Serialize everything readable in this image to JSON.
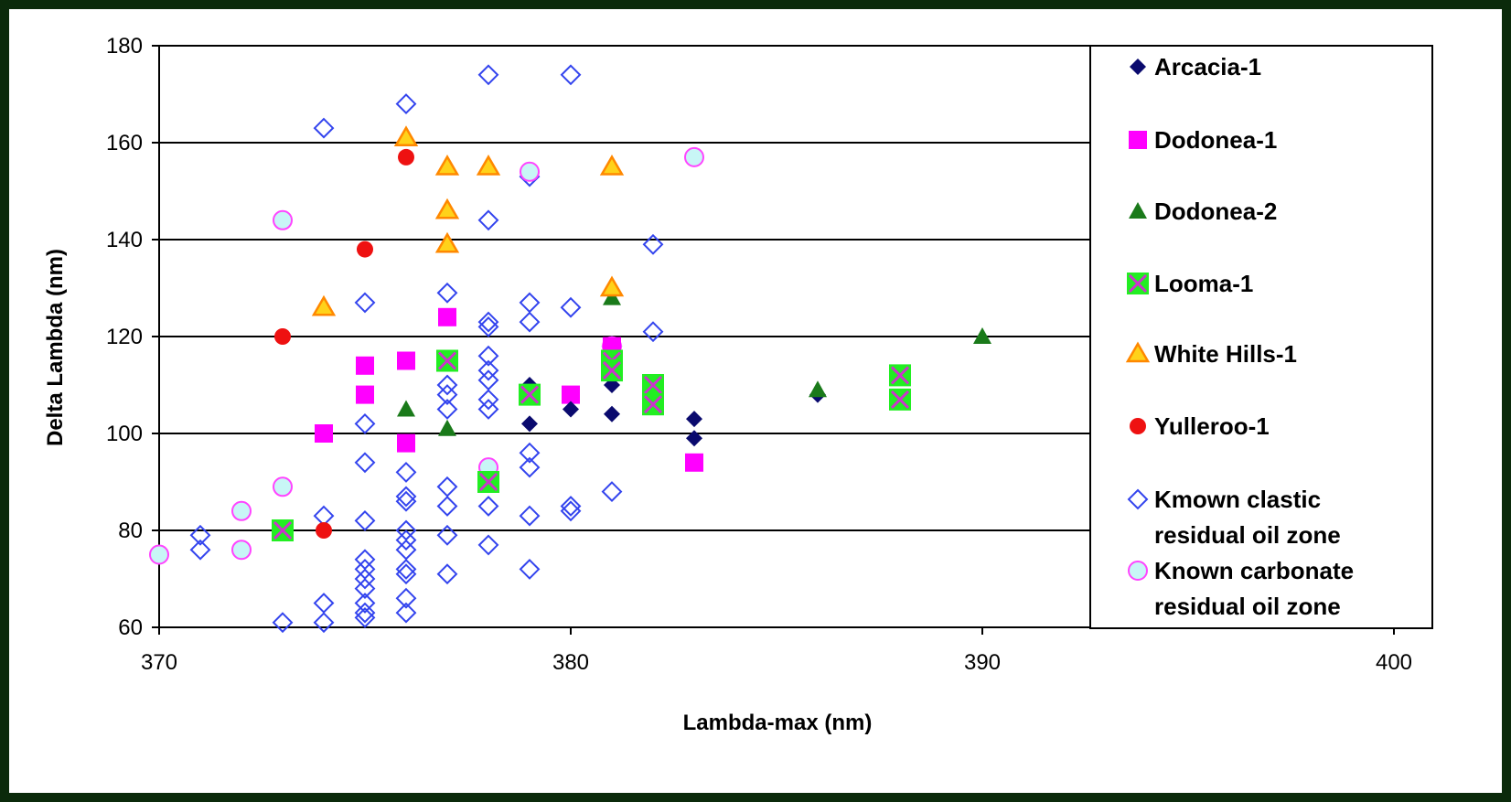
{
  "chart_data": {
    "type": "scatter",
    "xlabel": "Lambda-max (nm)",
    "ylabel": "Delta Lambda (nm)",
    "xlim": [
      370,
      400
    ],
    "ylim": [
      60,
      180
    ],
    "xticks": [
      370,
      380,
      390,
      400
    ],
    "yticks": [
      60,
      80,
      100,
      120,
      140,
      160,
      180
    ],
    "grid": "horizontal",
    "legend_position": "right",
    "series": [
      {
        "name": "Arcacia-1",
        "marker": "diamond-filled",
        "color": "#0a0a6e",
        "points": [
          [
            379,
            110
          ],
          [
            379,
            102
          ],
          [
            380,
            105
          ],
          [
            381,
            110
          ],
          [
            381,
            104
          ],
          [
            383,
            103
          ],
          [
            383,
            99
          ],
          [
            386,
            108
          ]
        ]
      },
      {
        "name": "Dodonea-1",
        "marker": "square-filled",
        "color": "#ff00ff",
        "points": [
          [
            374,
            100
          ],
          [
            375,
            114
          ],
          [
            375,
            108
          ],
          [
            376,
            115
          ],
          [
            376,
            98
          ],
          [
            377,
            124
          ],
          [
            378,
            90
          ],
          [
            379,
            108
          ],
          [
            380,
            108
          ],
          [
            381,
            118
          ],
          [
            383,
            94
          ]
        ]
      },
      {
        "name": "Dodonea-2",
        "marker": "triangle-filled",
        "color": "#1a7a1a",
        "points": [
          [
            376,
            105
          ],
          [
            377,
            101
          ],
          [
            381,
            128
          ],
          [
            386,
            109
          ],
          [
            390,
            120
          ]
        ]
      },
      {
        "name": "Looma-1",
        "marker": "square-x",
        "color": "#22ee22",
        "points": [
          [
            373,
            80
          ],
          [
            377,
            115
          ],
          [
            378,
            90
          ],
          [
            379,
            108
          ],
          [
            381,
            115
          ],
          [
            381,
            113
          ],
          [
            382,
            110
          ],
          [
            382,
            106
          ],
          [
            388,
            112
          ],
          [
            388,
            107
          ]
        ]
      },
      {
        "name": "White Hills-1",
        "marker": "triangle-outline",
        "color": "#ff8800",
        "points": [
          [
            374,
            126
          ],
          [
            376,
            161
          ],
          [
            377,
            155
          ],
          [
            377,
            146
          ],
          [
            377,
            139
          ],
          [
            378,
            155
          ],
          [
            381,
            155
          ],
          [
            381,
            130
          ]
        ]
      },
      {
        "name": "Yulleroo-1",
        "marker": "circle-filled",
        "color": "#ee1111",
        "points": [
          [
            373,
            120
          ],
          [
            374,
            80
          ],
          [
            375,
            138
          ],
          [
            376,
            157
          ]
        ]
      },
      {
        "name": "Kmown clastic residual oil zone",
        "marker": "diamond-outline",
        "color": "#3344ee",
        "points": [
          [
            371,
            79
          ],
          [
            371,
            76
          ],
          [
            373,
            61
          ],
          [
            374,
            163
          ],
          [
            374,
            83
          ],
          [
            374,
            65
          ],
          [
            374,
            61
          ],
          [
            375,
            127
          ],
          [
            375,
            102
          ],
          [
            375,
            94
          ],
          [
            375,
            82
          ],
          [
            375,
            74
          ],
          [
            375,
            72
          ],
          [
            375,
            70
          ],
          [
            375,
            68
          ],
          [
            375,
            65
          ],
          [
            375,
            63
          ],
          [
            375,
            62
          ],
          [
            376,
            168
          ],
          [
            376,
            92
          ],
          [
            376,
            87
          ],
          [
            376,
            86
          ],
          [
            376,
            80
          ],
          [
            376,
            78
          ],
          [
            376,
            76
          ],
          [
            376,
            72
          ],
          [
            376,
            71
          ],
          [
            376,
            66
          ],
          [
            376,
            63
          ],
          [
            377,
            129
          ],
          [
            377,
            110
          ],
          [
            377,
            108
          ],
          [
            377,
            105
          ],
          [
            377,
            89
          ],
          [
            377,
            85
          ],
          [
            377,
            79
          ],
          [
            377,
            71
          ],
          [
            378,
            174
          ],
          [
            378,
            144
          ],
          [
            378,
            123
          ],
          [
            378,
            122
          ],
          [
            378,
            116
          ],
          [
            378,
            113
          ],
          [
            378,
            111
          ],
          [
            378,
            107
          ],
          [
            378,
            105
          ],
          [
            378,
            85
          ],
          [
            378,
            77
          ],
          [
            379,
            153
          ],
          [
            379,
            127
          ],
          [
            379,
            123
          ],
          [
            379,
            96
          ],
          [
            379,
            93
          ],
          [
            379,
            83
          ],
          [
            379,
            72
          ],
          [
            380,
            174
          ],
          [
            380,
            126
          ],
          [
            380,
            85
          ],
          [
            380,
            84
          ],
          [
            381,
            118
          ],
          [
            381,
            88
          ],
          [
            382,
            139
          ],
          [
            382,
            121
          ]
        ]
      },
      {
        "name": "Known carbonate residual oil zone",
        "marker": "circle-outline",
        "color": "#ff44ff",
        "points": [
          [
            370,
            75
          ],
          [
            372,
            84
          ],
          [
            372,
            76
          ],
          [
            373,
            144
          ],
          [
            373,
            89
          ],
          [
            378,
            93
          ],
          [
            378,
            90
          ],
          [
            379,
            154
          ],
          [
            381,
            118
          ],
          [
            383,
            157
          ]
        ]
      }
    ],
    "legend": [
      {
        "lines": [
          "Arcacia-1"
        ]
      },
      {
        "lines": [
          "Dodonea-1"
        ]
      },
      {
        "lines": [
          "Dodonea-2"
        ]
      },
      {
        "lines": [
          "Looma-1"
        ]
      },
      {
        "lines": [
          "White Hills-1"
        ]
      },
      {
        "lines": [
          "Yulleroo-1"
        ]
      },
      {
        "lines": [
          "Kmown clastic",
          "residual oil zone"
        ]
      },
      {
        "lines": [
          "Known carbonate",
          "residual oil zone"
        ]
      }
    ]
  }
}
